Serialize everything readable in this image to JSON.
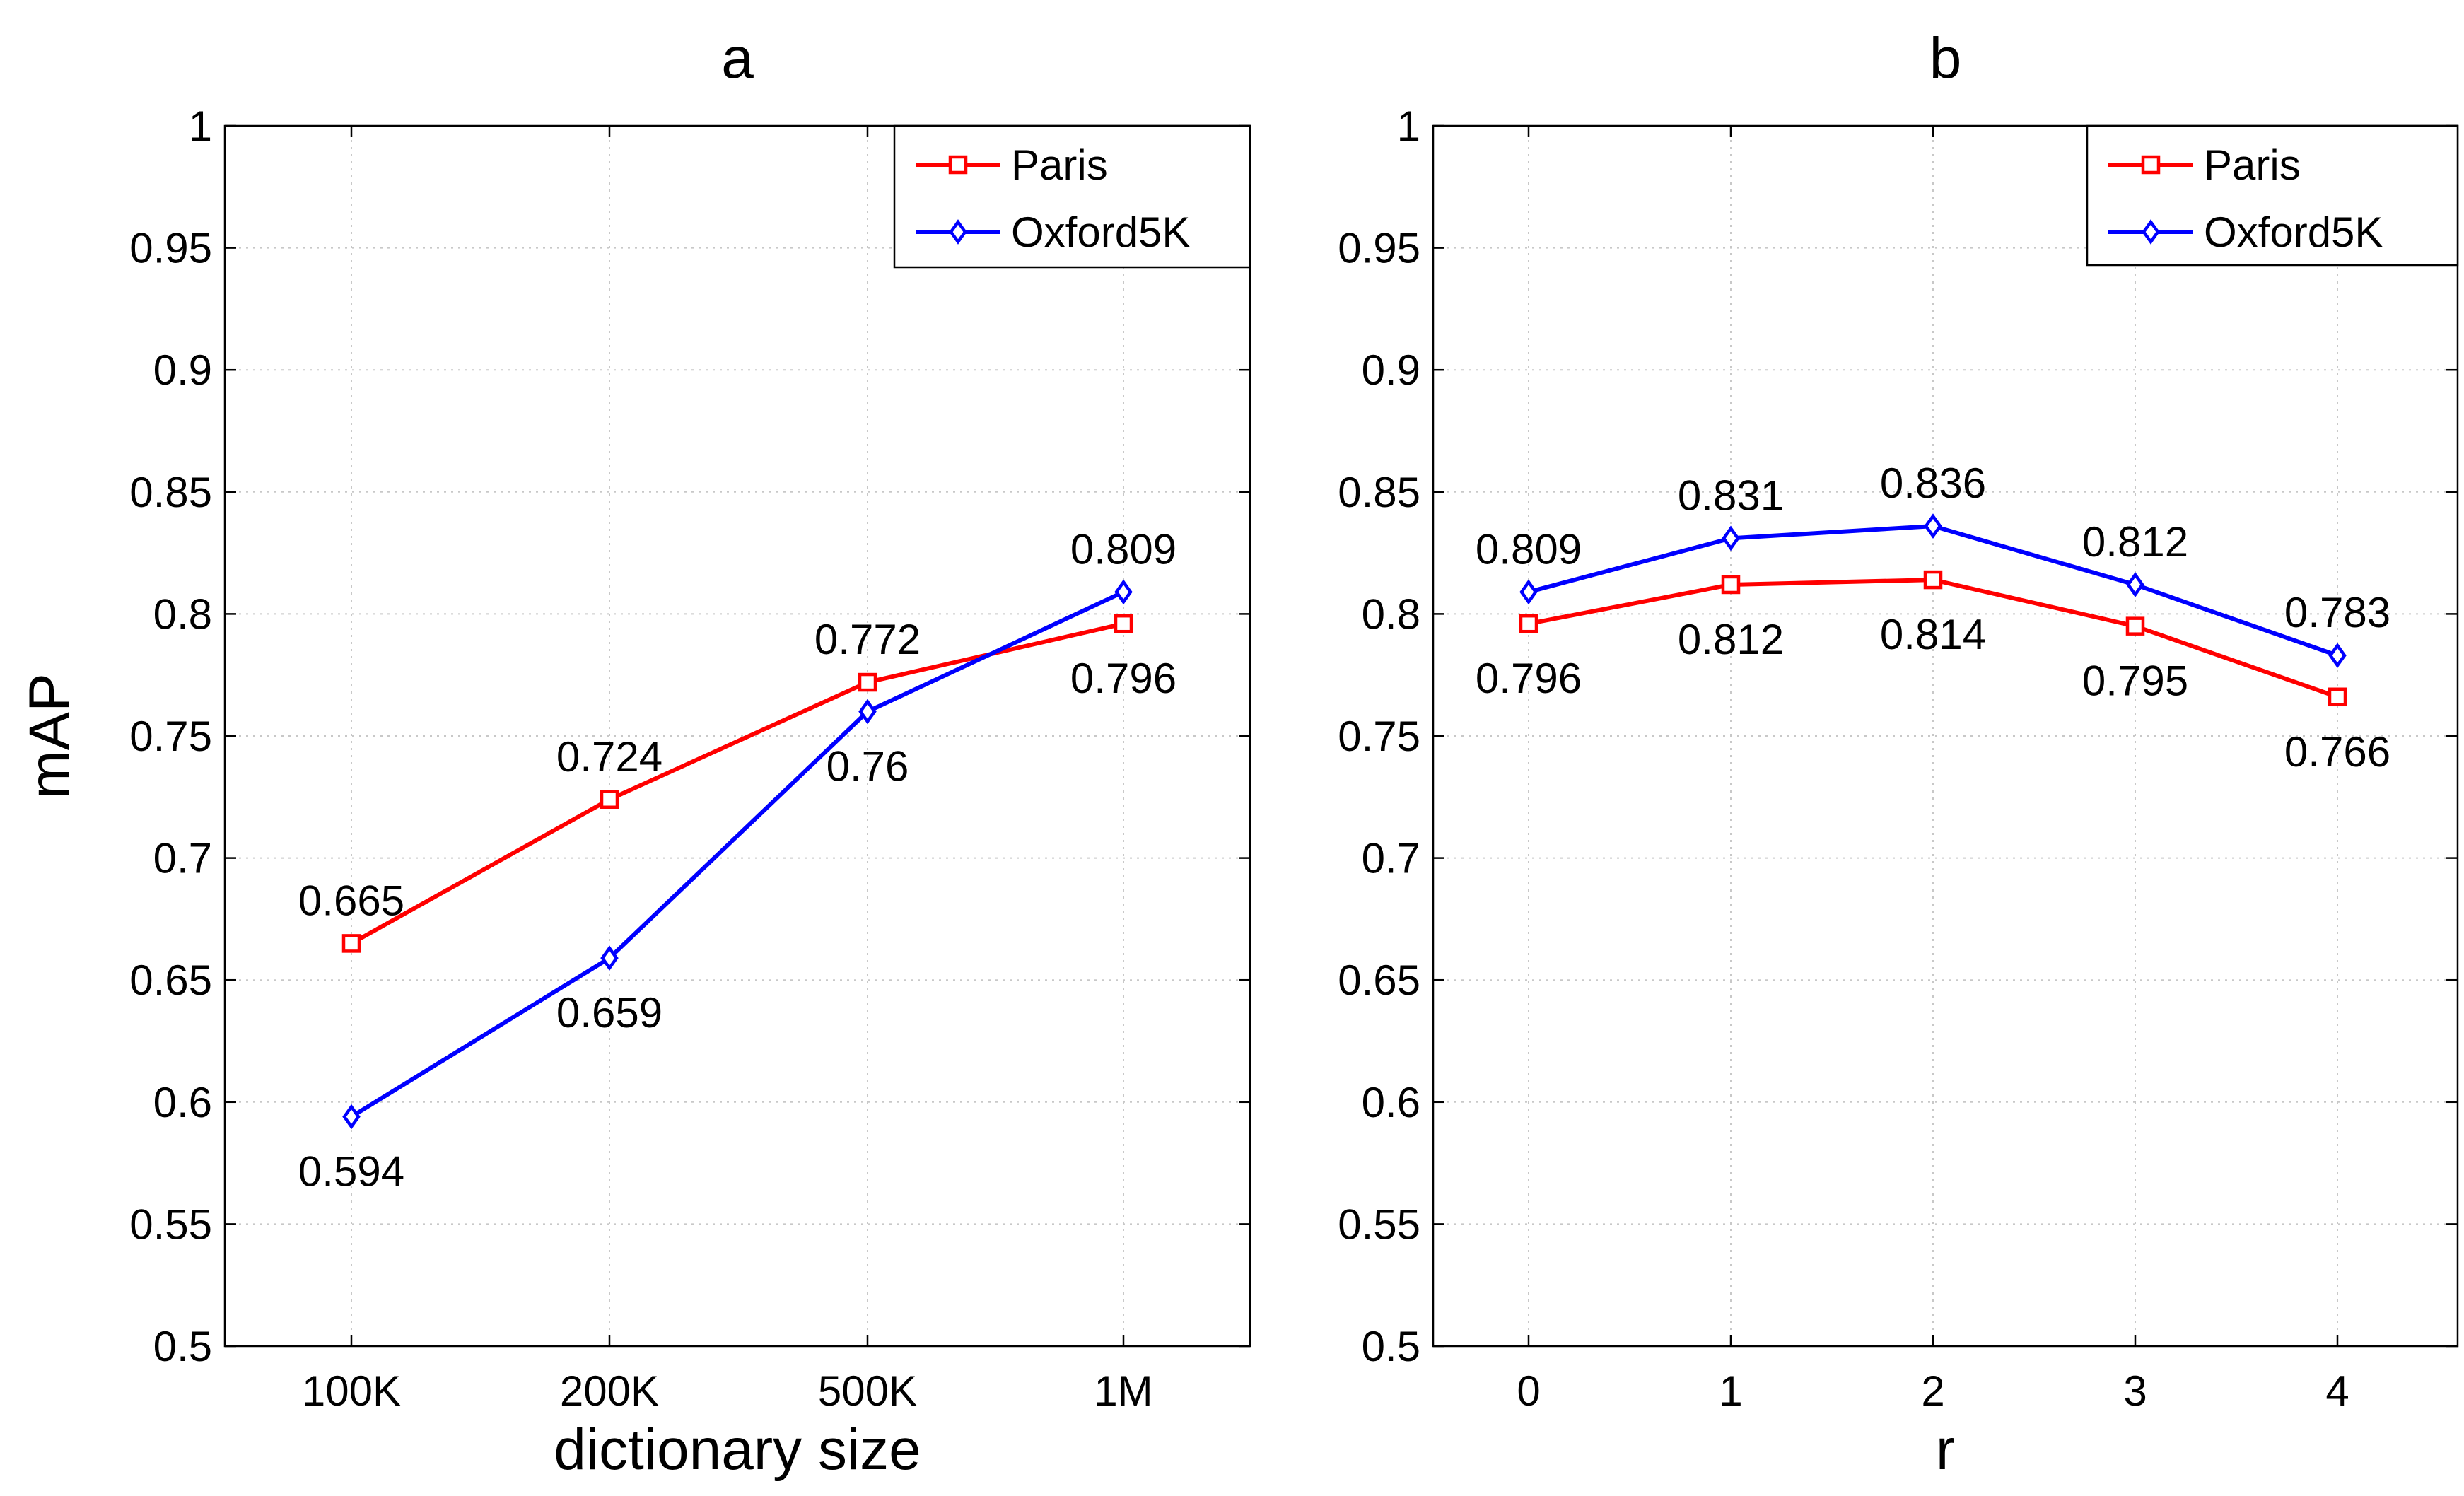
{
  "chart_data": [
    {
      "type": "line",
      "title": "a",
      "xlabel": "dictionary size",
      "ylabel": "mAP",
      "categories": [
        "100K",
        "200K",
        "500K",
        "1M"
      ],
      "ylim": [
        0.5,
        1
      ],
      "yticks": [
        "0.5",
        "0.55",
        "0.6",
        "0.65",
        "0.7",
        "0.75",
        "0.8",
        "0.85",
        "0.9",
        "0.95",
        "1"
      ],
      "grid": true,
      "legend": "top-right",
      "series": [
        {
          "name": "Paris",
          "color": "#ff0000",
          "marker": "square",
          "values": [
            0.665,
            0.724,
            0.772,
            0.796
          ],
          "labels": [
            "0.665",
            "0.724",
            "0.772",
            "0.796"
          ],
          "label_side": [
            "above",
            "above",
            "above",
            "below"
          ]
        },
        {
          "name": "Oxford5K",
          "color": "#0000ff",
          "marker": "diamond",
          "values": [
            0.594,
            0.659,
            0.76,
            0.809
          ],
          "labels": [
            "0.594",
            "0.659",
            "0.76",
            "0.809"
          ],
          "label_side": [
            "below",
            "below",
            "below",
            "above"
          ]
        }
      ]
    },
    {
      "type": "line",
      "title": "b",
      "xlabel": "r",
      "ylabel": "",
      "categories": [
        "0",
        "1",
        "2",
        "3",
        "4"
      ],
      "ylim": [
        0.5,
        1
      ],
      "yticks": [
        "0.5",
        "0.55",
        "0.6",
        "0.65",
        "0.7",
        "0.75",
        "0.8",
        "0.85",
        "0.9",
        "0.95",
        "1"
      ],
      "grid": true,
      "legend": "top-right",
      "series": [
        {
          "name": "Paris",
          "color": "#ff0000",
          "marker": "square",
          "values": [
            0.796,
            0.812,
            0.814,
            0.795,
            0.766
          ],
          "labels": [
            "0.796",
            "0.812",
            "0.814",
            "0.795",
            "0.766"
          ],
          "label_side": [
            "below",
            "below",
            "below",
            "below",
            "below"
          ]
        },
        {
          "name": "Oxford5K",
          "color": "#0000ff",
          "marker": "diamond",
          "values": [
            0.809,
            0.831,
            0.836,
            0.812,
            0.783
          ],
          "labels": [
            "0.809",
            "0.831",
            "0.836",
            "0.812",
            "0.783"
          ],
          "label_side": [
            "above",
            "above",
            "above",
            "above",
            "above"
          ]
        }
      ]
    }
  ]
}
